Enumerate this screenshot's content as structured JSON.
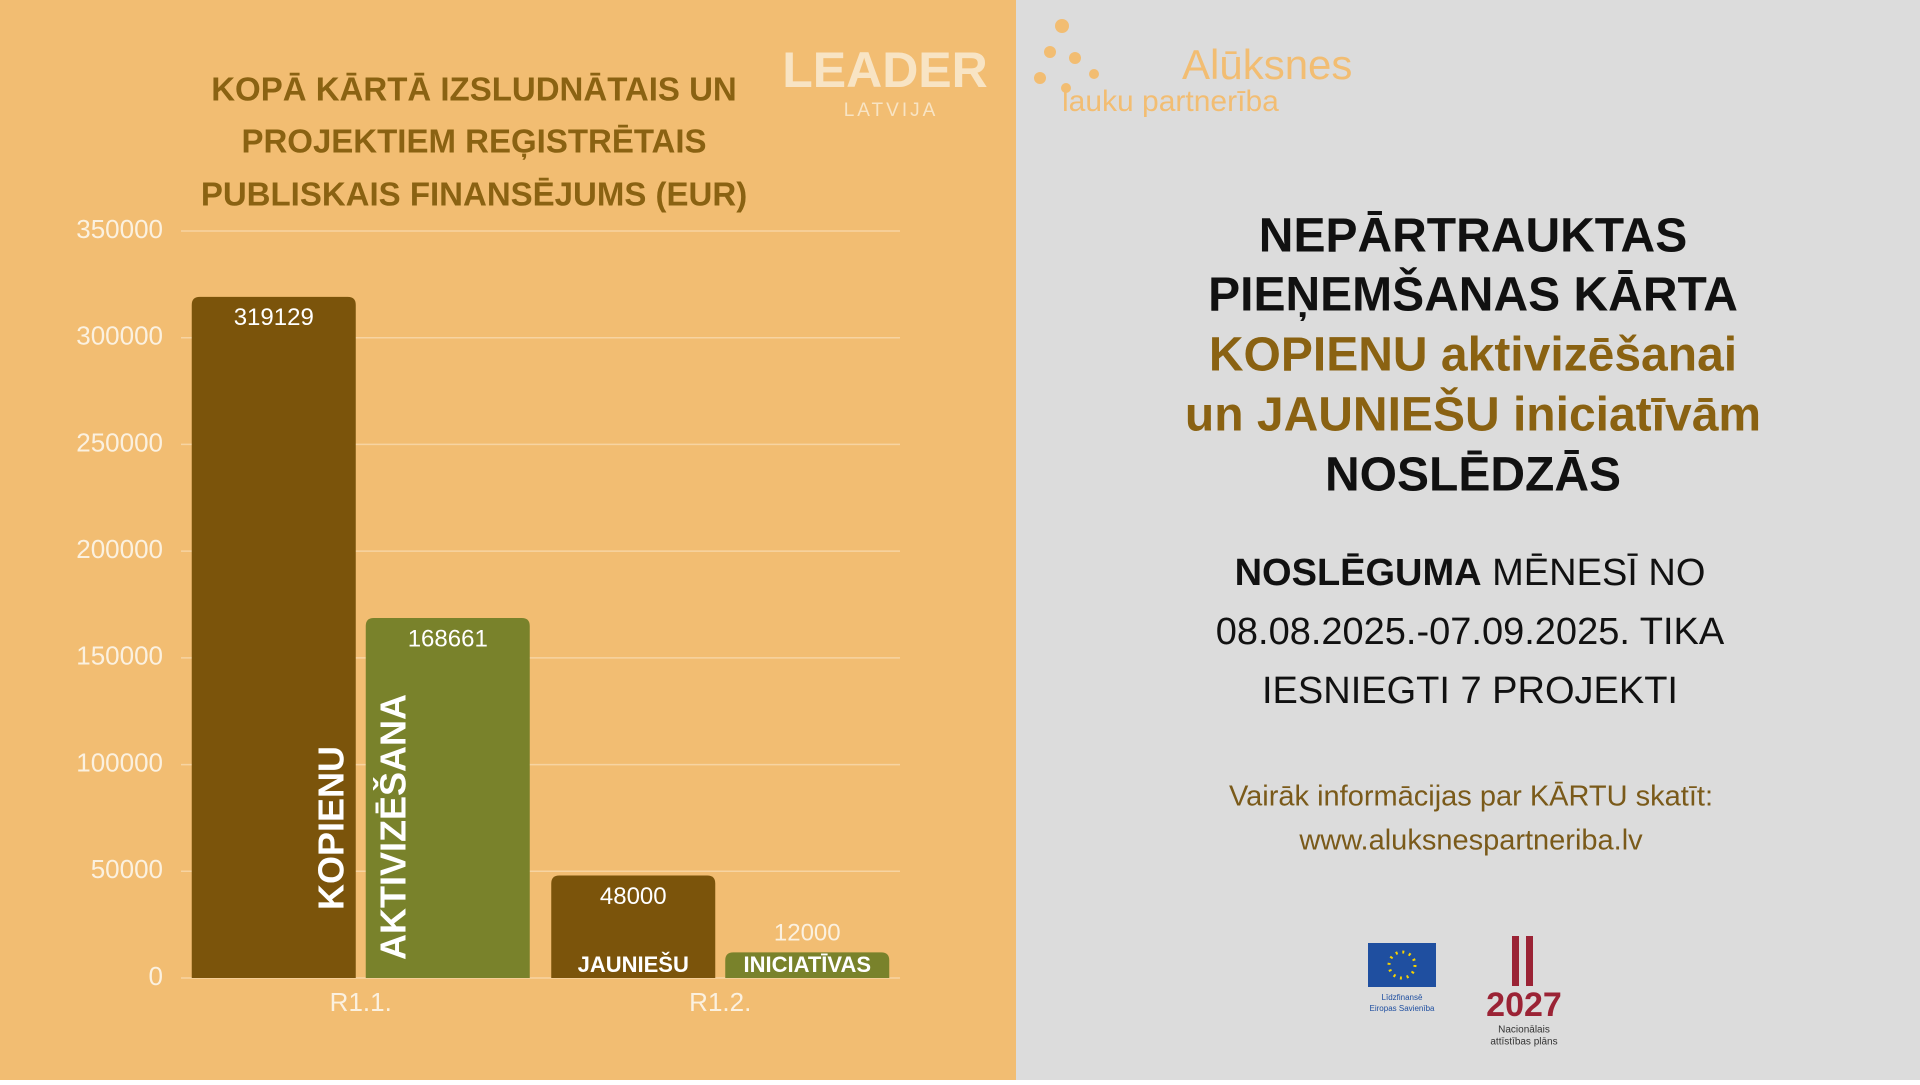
{
  "chart_data": {
    "type": "bar",
    "title": [
      "KOPĀ KĀRTĀ IZSLUDNĀTAIS UN",
      "PROJEKTIEM REĢISTRĒTAIS",
      "PUBLISKAIS FINANSĒJUMS (EUR)"
    ],
    "categories": [
      "R1.1.",
      "R1.2."
    ],
    "series": [
      {
        "color": "#7b540b",
        "values": [
          319129,
          48000
        ],
        "bar_labels": [
          "KOPIENU",
          "JAUNIEŠU"
        ]
      },
      {
        "color": "#79822b",
        "values": [
          168661,
          12000
        ],
        "bar_labels": [
          "AKTIVIZĒŠANA",
          "INICIATĪVAS"
        ]
      }
    ],
    "ylim": [
      0,
      350000
    ],
    "yticks": [
      0,
      50000,
      100000,
      150000,
      200000,
      250000,
      300000,
      350000
    ],
    "grid": true
  },
  "logos": {
    "leader": "LEADER",
    "leader_sub": "LATVIJA",
    "partner": "Alūksnes",
    "partner_sub": "lauku partnerība",
    "eu": [
      "Līdzfinansē",
      "Eiropas Savienība"
    ],
    "nap_year": "2027",
    "nap": [
      "Nacionālais",
      "attīstības plāns"
    ]
  },
  "announcement": {
    "headline": [
      "NEPĀRTRAUKTAS",
      "PIEŅEMŠANAS KĀRTA",
      "KOPIENU aktivizēšanai",
      "un JAUNIEŠU iniciatīvām",
      "NOSLĒDZĀS"
    ],
    "details_bold": "NOSLĒGUMA",
    "details": [
      " MĒNESĪ NO",
      "08.08.2025.-07.09.2025. TIKA",
      "IESNIEGTI 7 PROJEKTI"
    ],
    "info": [
      "Vairāk informācijas par KĀRTU skatīt:",
      "www.aluksnespartneriba.lv"
    ]
  }
}
